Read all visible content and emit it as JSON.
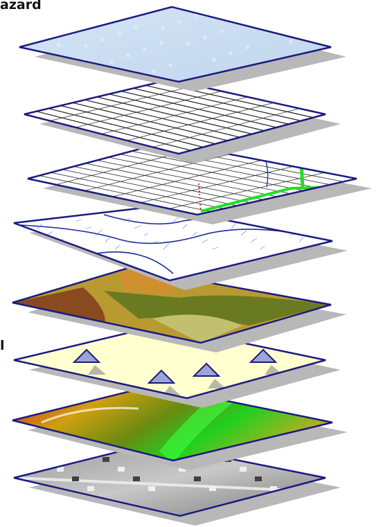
{
  "labels": {
    "hazard": "azard",
    "tool": "l"
  }
}
